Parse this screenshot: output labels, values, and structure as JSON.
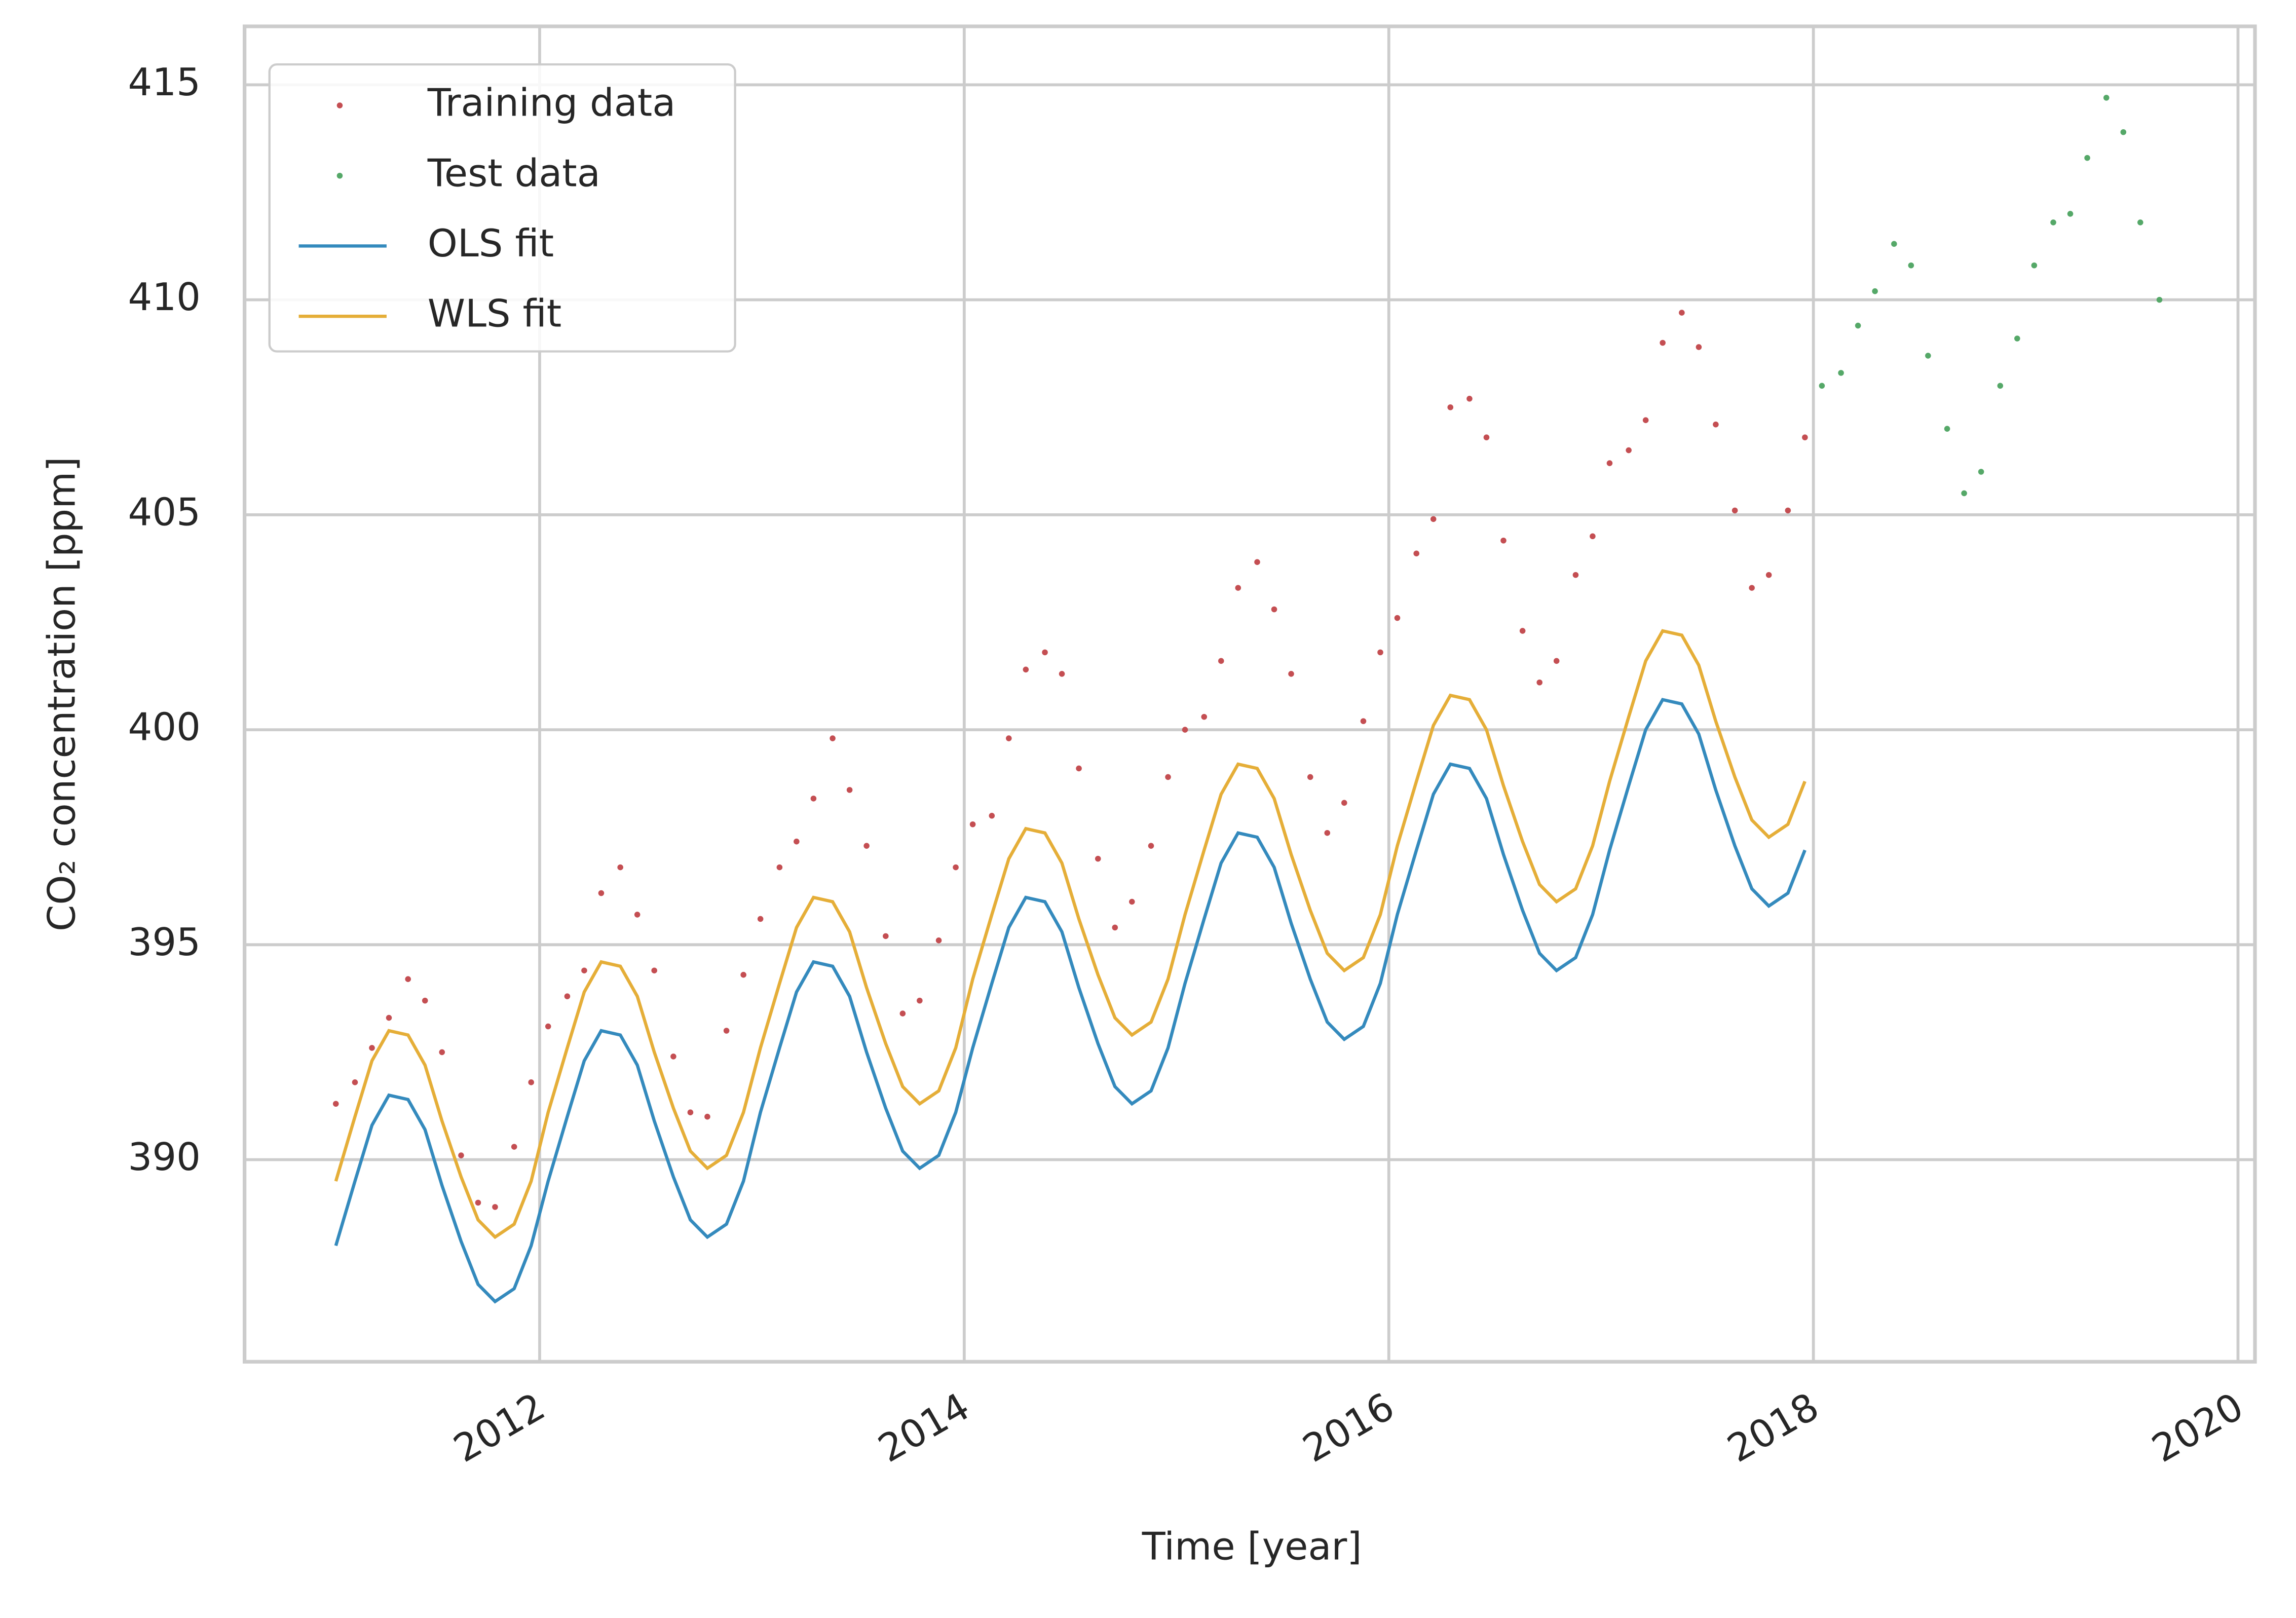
{
  "chart_data": {
    "type": "line",
    "x_label": "Time [year]",
    "y_label": "CO₂ concentration [ppm]",
    "xlim": [
      2010.61,
      2020.08
    ],
    "ylim": [
      385.3,
      416.36
    ],
    "xticks": [
      2012,
      2014,
      2016,
      2018,
      2020
    ],
    "yticks": [
      390,
      395,
      400,
      405,
      410,
      415
    ],
    "grid": true,
    "legend": "upper left",
    "x": [
      2011.04,
      2011.13,
      2011.21,
      2011.29,
      2011.38,
      2011.46,
      2011.54,
      2011.63,
      2011.71,
      2011.79,
      2011.88,
      2011.96,
      2012.04,
      2012.13,
      2012.21,
      2012.29,
      2012.38,
      2012.46,
      2012.54,
      2012.63,
      2012.71,
      2012.79,
      2012.88,
      2012.96,
      2013.04,
      2013.13,
      2013.21,
      2013.29,
      2013.38,
      2013.46,
      2013.54,
      2013.63,
      2013.71,
      2013.79,
      2013.88,
      2013.96,
      2014.04,
      2014.13,
      2014.21,
      2014.29,
      2014.38,
      2014.46,
      2014.54,
      2014.63,
      2014.71,
      2014.79,
      2014.88,
      2014.96,
      2015.04,
      2015.13,
      2015.21,
      2015.29,
      2015.38,
      2015.46,
      2015.54,
      2015.63,
      2015.71,
      2015.79,
      2015.88,
      2015.96,
      2016.04,
      2016.13,
      2016.21,
      2016.29,
      2016.38,
      2016.46,
      2016.54,
      2016.63,
      2016.71,
      2016.79,
      2016.88,
      2016.96,
      2017.04,
      2017.13,
      2017.21,
      2017.29,
      2017.38,
      2017.46,
      2017.54,
      2017.63,
      2017.71,
      2017.79,
      2017.88,
      2017.96
    ],
    "series": [
      {
        "name": "Training data",
        "type": "scatter",
        "color": "#c44e52",
        "values": [
          391.3,
          391.8,
          392.6,
          393.3,
          394.2,
          393.7,
          392.5,
          390.1,
          389.0,
          388.9,
          390.3,
          391.8,
          393.1,
          393.8,
          394.4,
          396.2,
          396.8,
          395.7,
          394.4,
          392.4,
          391.1,
          391.0,
          393.0,
          394.3,
          395.6,
          396.8,
          397.4,
          398.4,
          399.8,
          398.6,
          397.3,
          395.2,
          393.4,
          393.7,
          395.1,
          396.8,
          397.8,
          398.0,
          399.8,
          401.4,
          401.8,
          401.3,
          399.1,
          397.0,
          395.4,
          396.0,
          397.3,
          398.9,
          400.0,
          400.3,
          401.6,
          403.3,
          403.9,
          402.8,
          401.3,
          398.9,
          397.6,
          398.3,
          400.2,
          401.8,
          402.6,
          404.1,
          404.9,
          407.5,
          407.7,
          406.8,
          404.4,
          402.3,
          401.1,
          401.6,
          403.6,
          404.5,
          406.2,
          406.5,
          407.2,
          409.0,
          409.7,
          408.9,
          407.1,
          405.1,
          403.3,
          403.6,
          405.1,
          406.8
        ]
      },
      {
        "name": "Test data",
        "type": "scatter",
        "color": "#55a868",
        "x": [
          2018.04,
          2018.13,
          2018.21,
          2018.29,
          2018.38,
          2018.46,
          2018.54,
          2018.63,
          2018.71,
          2018.79,
          2018.88,
          2018.96,
          2019.04,
          2019.13,
          2019.21,
          2019.29,
          2019.38,
          2019.46,
          2019.54,
          2019.63
        ],
        "values": [
          408.0,
          408.3,
          409.4,
          410.2,
          411.3,
          410.8,
          408.7,
          407.0,
          405.5,
          406.0,
          408.0,
          409.1,
          410.8,
          411.8,
          412.0,
          413.3,
          414.7,
          413.9,
          411.8,
          410.0
        ]
      },
      {
        "name": "OLS fit",
        "type": "line",
        "color": "#348abd",
        "values": [
          388.0,
          389.5,
          390.8,
          391.5,
          391.4,
          390.7,
          389.4,
          388.1,
          387.1,
          386.7,
          387.0,
          388.0,
          389.5,
          391.0,
          392.3,
          393.0,
          392.9,
          392.2,
          390.9,
          389.6,
          388.6,
          388.2,
          388.5,
          389.5,
          391.1,
          392.6,
          393.9,
          394.6,
          394.5,
          393.8,
          392.5,
          391.2,
          390.2,
          389.8,
          390.1,
          391.1,
          392.6,
          394.1,
          395.4,
          396.1,
          396.0,
          395.3,
          394.0,
          392.7,
          391.7,
          391.3,
          391.6,
          392.6,
          394.1,
          395.6,
          396.9,
          397.6,
          397.5,
          396.8,
          395.5,
          394.2,
          393.2,
          392.8,
          393.1,
          394.1,
          395.7,
          397.2,
          398.5,
          399.2,
          399.1,
          398.4,
          397.1,
          395.8,
          394.8,
          394.4,
          394.7,
          395.7,
          397.2,
          398.7,
          400.0,
          400.7,
          400.6,
          399.9,
          398.6,
          397.3,
          396.3,
          395.9,
          396.2,
          397.2
        ]
      },
      {
        "name": "WLS fit",
        "type": "line",
        "color": "#e5ae38",
        "values": [
          389.5,
          391.0,
          392.3,
          393.0,
          392.9,
          392.2,
          390.9,
          389.6,
          388.6,
          388.2,
          388.5,
          389.5,
          391.1,
          392.6,
          393.9,
          394.6,
          394.5,
          393.8,
          392.5,
          391.2,
          390.2,
          389.8,
          390.1,
          391.1,
          392.6,
          394.1,
          395.4,
          396.1,
          396.0,
          395.3,
          394.0,
          392.7,
          391.7,
          391.3,
          391.6,
          392.6,
          394.2,
          395.7,
          397.0,
          397.7,
          397.6,
          396.9,
          395.6,
          394.3,
          393.3,
          392.9,
          393.2,
          394.2,
          395.7,
          397.2,
          398.5,
          399.2,
          399.1,
          398.4,
          397.1,
          395.8,
          394.8,
          394.4,
          394.7,
          395.7,
          397.3,
          398.8,
          400.1,
          400.8,
          400.7,
          400.0,
          398.7,
          397.4,
          396.4,
          396.0,
          396.3,
          397.3,
          398.8,
          400.3,
          401.6,
          402.3,
          402.2,
          401.5,
          400.2,
          398.9,
          397.9,
          397.5,
          397.8,
          398.8
        ]
      }
    ]
  }
}
